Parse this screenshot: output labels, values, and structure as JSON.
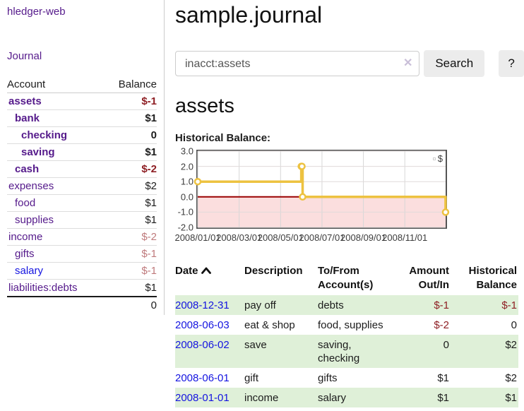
{
  "colors": {
    "link_visited_purple": "#551a8b",
    "link_unvisited_blue": "#1414e0",
    "negative_strong": "#8e1f24",
    "negative_muted": "#bf7a7c",
    "row_green": "#dff0d8",
    "series_gold": "#edc240",
    "zero_line_red": "#990000",
    "negative_region_pink": "#fbdede",
    "chart_border_gray": "#545454"
  },
  "sidebar": {
    "app_title": "hledger-web",
    "journal_label": "Journal",
    "accounts_table": {
      "headers": {
        "account": "Account",
        "balance": "Balance"
      },
      "rows": [
        {
          "name": "assets",
          "depth": 1,
          "balance": "$-1",
          "bold": true,
          "neg": "strong"
        },
        {
          "name": "bank",
          "depth": 2,
          "balance": "$1",
          "bold": true
        },
        {
          "name": "checking",
          "depth": 3,
          "balance": "0",
          "bold": true
        },
        {
          "name": "saving",
          "depth": 3,
          "balance": "$1",
          "bold": true
        },
        {
          "name": "cash",
          "depth": 2,
          "balance": "$-2",
          "bold": true,
          "neg": "strong"
        },
        {
          "name": "expenses",
          "depth": 1,
          "balance": "$2"
        },
        {
          "name": "food",
          "depth": 2,
          "balance": "$1"
        },
        {
          "name": "supplies",
          "depth": 2,
          "balance": "$1"
        },
        {
          "name": "income",
          "depth": 1,
          "balance": "$-2",
          "neg": "muted"
        },
        {
          "name": "gifts",
          "depth": 2,
          "balance": "$-1",
          "neg": "muted"
        },
        {
          "name": "salary",
          "depth": 2,
          "balance": "$-1",
          "neg": "muted",
          "unvisited": true
        },
        {
          "name": "liabilities:debts",
          "depth": 1,
          "balance": "$1"
        }
      ],
      "total": "0"
    }
  },
  "main": {
    "title": "sample.journal",
    "search": {
      "value": "inacct:assets",
      "clear_icon": "✕",
      "button_label": "Search",
      "help_label": "?"
    },
    "account_heading": "assets",
    "chart_label": "Historical Balance:"
  },
  "chart_data": {
    "type": "line",
    "title": "Historical Balance:",
    "series": [
      {
        "name": "$",
        "color": "#edc240",
        "step": true,
        "points": [
          [
            "2008-01-01",
            1.0
          ],
          [
            "2008-06-01",
            2.0
          ],
          [
            "2008-06-02",
            2.0
          ],
          [
            "2008-06-03",
            0.0
          ],
          [
            "2008-12-31",
            -1.0
          ]
        ]
      }
    ],
    "ylim": [
      -2.0,
      3.0
    ],
    "ytick_labels": [
      "3.0",
      "2.0",
      "1.0",
      "0.0",
      "-1.0",
      "-2.0"
    ],
    "ytick_values": [
      3.0,
      2.0,
      1.0,
      0.0,
      -1.0,
      -2.0
    ],
    "xticks": [
      {
        "label": "2008/01/01",
        "month": 0
      },
      {
        "label": "2008/03/01",
        "month": 2
      },
      {
        "label": "2008/05/01",
        "month": 4
      },
      {
        "label": "2008/07/01",
        "month": 6
      },
      {
        "label": "2008/09/01",
        "month": 8
      },
      {
        "label": "2008/11/01",
        "month": 10
      }
    ],
    "x_range_months": [
      0,
      11.97
    ],
    "grid": true,
    "legend": {
      "label": "$",
      "position": "top-right"
    }
  },
  "register_table": {
    "headers": {
      "date": "Date",
      "description": "Description",
      "accounts": "To/From Account(s)",
      "amount": "Amount Out/In",
      "balance": "Historical Balance"
    },
    "rows": [
      {
        "date": "2008-12-31",
        "description": "pay off",
        "accounts": "debts",
        "amount": "$-1",
        "balance": "$-1",
        "amount_neg": true,
        "balance_neg": true,
        "shade": true
      },
      {
        "date": "2008-06-03",
        "description": "eat & shop",
        "accounts": "food, supplies",
        "amount": "$-2",
        "balance": "0",
        "amount_neg": true,
        "shade": false
      },
      {
        "date": "2008-06-02",
        "description": "save",
        "accounts": "saving, checking",
        "amount": "0",
        "balance": "$2",
        "shade": true
      },
      {
        "date": "2008-06-01",
        "description": "gift",
        "accounts": "gifts",
        "amount": "$1",
        "balance": "$2",
        "shade": false
      },
      {
        "date": "2008-01-01",
        "description": "income",
        "accounts": "salary",
        "amount": "$1",
        "balance": "$1",
        "shade": true
      }
    ]
  }
}
